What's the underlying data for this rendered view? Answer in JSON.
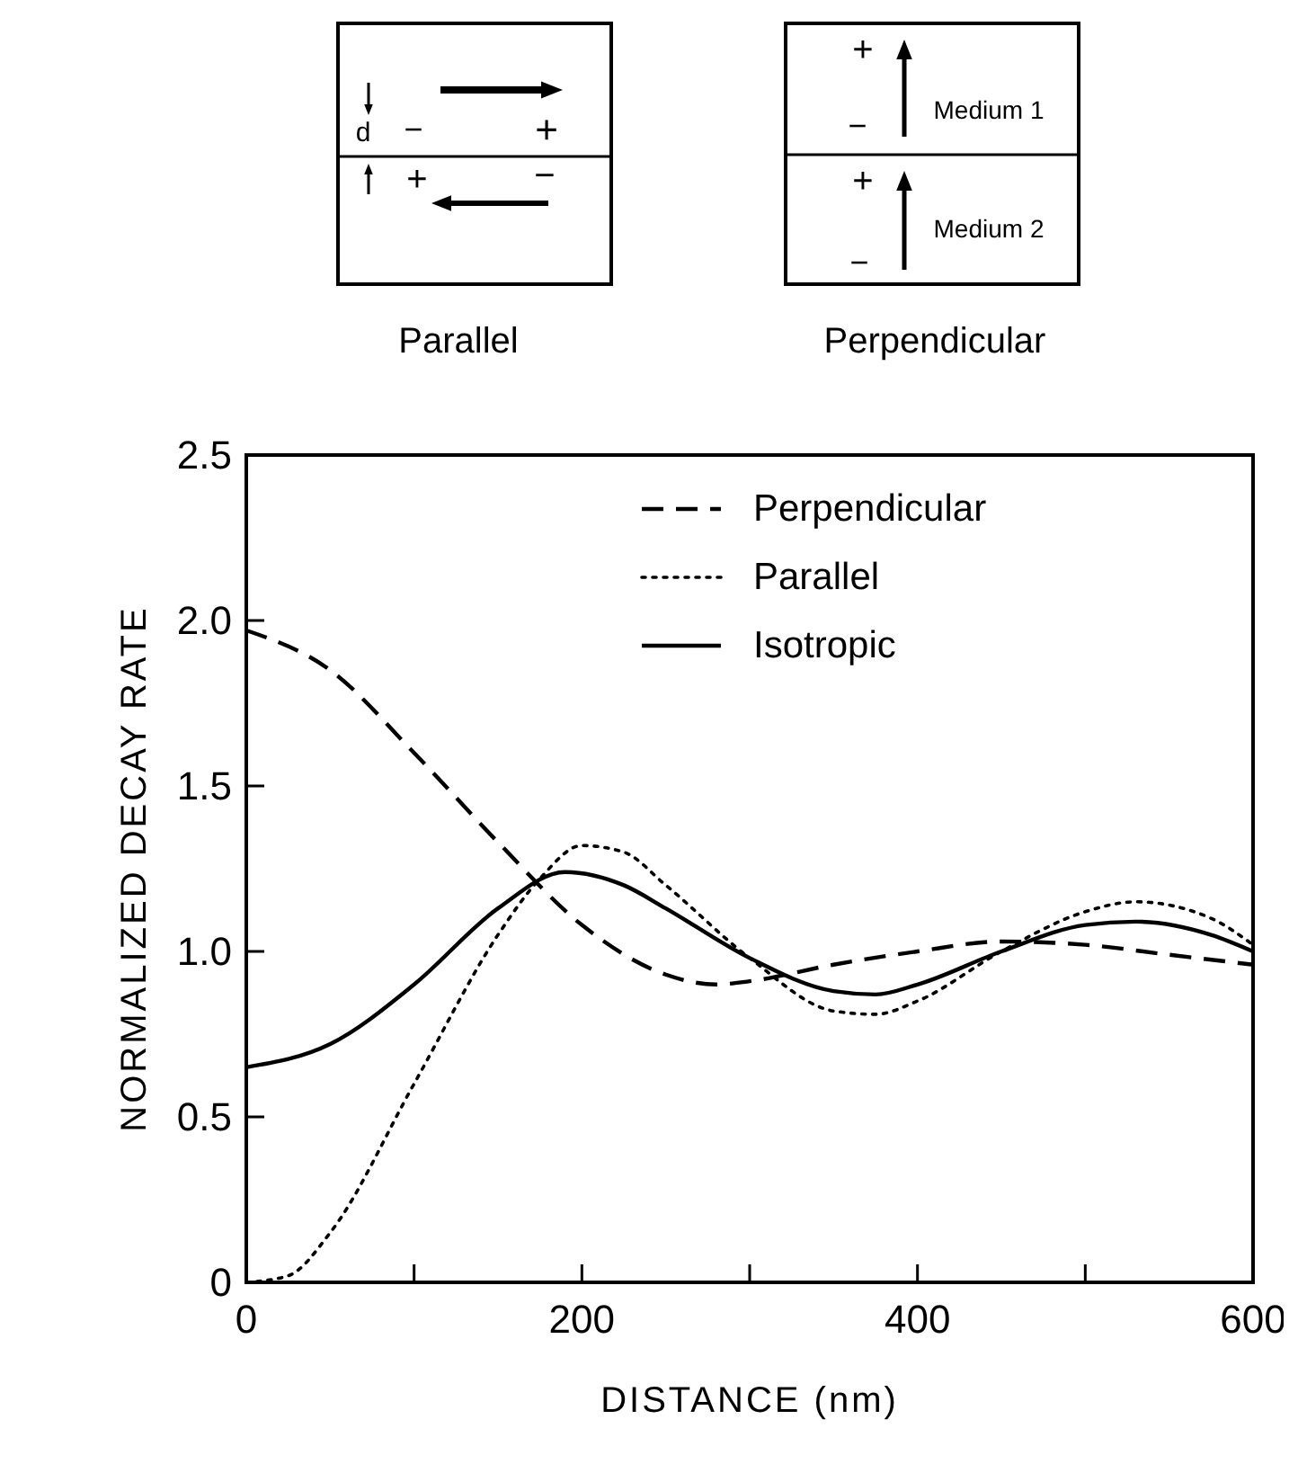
{
  "chart_data": {
    "type": "line",
    "xlabel": "DISTANCE  (nm)",
    "ylabel": "NORMALIZED DECAY RATE",
    "xlim": [
      0,
      600
    ],
    "xticks": [
      0,
      {
        "value": 100,
        "label": null
      },
      200,
      {
        "value": 300,
        "label": null
      },
      400,
      {
        "value": 500,
        "label": null
      },
      600
    ],
    "ylim": [
      0,
      2.5
    ],
    "yticks": [
      0,
      0.5,
      {
        "value": 1,
        "label": "1.0"
      },
      {
        "value": 1.5,
        "label": "1.5"
      },
      {
        "value": 2,
        "label": "2.0"
      },
      {
        "value": 2.5,
        "label": "2.5"
      }
    ],
    "grid": false,
    "legend": "top right",
    "series": [
      {
        "name": "Perpendicular",
        "color": "#000000",
        "line_style": "dashed",
        "x": [
          0,
          50,
          100,
          150,
          200,
          250,
          280,
          300,
          350,
          400,
          450,
          500,
          550,
          600
        ],
        "values": [
          1.97,
          1.85,
          1.6,
          1.33,
          1.08,
          0.93,
          0.9,
          0.91,
          0.96,
          1.0,
          1.03,
          1.02,
          0.99,
          0.96
        ]
      },
      {
        "name": "Parallel",
        "color": "#000000",
        "line_style": "dotted",
        "x": [
          0,
          25,
          50,
          100,
          150,
          175,
          200,
          225,
          250,
          300,
          350,
          375,
          400,
          450,
          500,
          530,
          575,
          600
        ],
        "values": [
          0,
          0.02,
          0.15,
          0.6,
          1.05,
          1.22,
          1.32,
          1.3,
          1.2,
          0.98,
          0.82,
          0.81,
          0.85,
          1.0,
          1.12,
          1.15,
          1.1,
          1.02
        ]
      },
      {
        "name": "Isotropic",
        "color": "#000000",
        "line_style": "solid",
        "x": [
          0,
          50,
          100,
          150,
          190,
          225,
          250,
          300,
          350,
          375,
          400,
          450,
          500,
          530,
          575,
          600
        ],
        "values": [
          0.65,
          0.72,
          0.9,
          1.13,
          1.24,
          1.2,
          1.13,
          0.98,
          0.88,
          0.87,
          0.9,
          1.0,
          1.08,
          1.09,
          1.05,
          1.0
        ]
      }
    ],
    "annotations": [
      "d",
      "−",
      "+",
      "+",
      "−",
      "Parallel",
      "+",
      "−",
      "Medium 1",
      "+",
      "−",
      "Medium 2",
      "Perpendicular"
    ]
  }
}
